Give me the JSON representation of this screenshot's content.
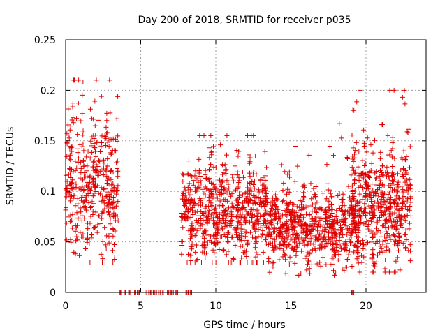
{
  "chart_data": {
    "type": "scatter",
    "title": "Day 200 of 2018, SRMTID for receiver p035",
    "xlabel": "GPS time / hours",
    "ylabel": "SRMTID / TECUs",
    "xlim": [
      0,
      24
    ],
    "ylim": [
      0,
      0.25
    ],
    "xticks": [
      0,
      5,
      10,
      15,
      20
    ],
    "yticks": [
      0,
      0.05,
      0.1,
      0.15,
      0.2,
      0.25
    ],
    "ytick_labels": [
      "0",
      "0.05",
      "0.1",
      "0.15",
      "0.2",
      "0.25"
    ],
    "grid": true,
    "marker": "+",
    "marker_color": "#e00000",
    "series": [
      {
        "name": "SRMTID",
        "segments": [
          {
            "t_start": 0.0,
            "t_end": 3.5,
            "mean": 0.1,
            "spread": 0.04,
            "min": 0.03,
            "max": 0.21,
            "count": 420
          },
          {
            "t_start": 3.5,
            "t_end": 8.5,
            "value": 0.0,
            "count": 60
          },
          {
            "t_start": 7.7,
            "t_end": 13.5,
            "mean": 0.077,
            "spread": 0.028,
            "min": 0.03,
            "max": 0.155,
            "count": 700
          },
          {
            "t_start": 13.5,
            "t_end": 19.5,
            "mean": 0.063,
            "spread": 0.02,
            "min": 0.017,
            "max": 0.167,
            "count": 700
          },
          {
            "t_start": 19.0,
            "t_end": 19.2,
            "value": 0.0,
            "count": 3
          },
          {
            "t_start": 19.0,
            "t_end": 23.0,
            "mean": 0.085,
            "spread": 0.035,
            "min": 0.02,
            "max": 0.2,
            "count": 550
          }
        ]
      }
    ]
  }
}
